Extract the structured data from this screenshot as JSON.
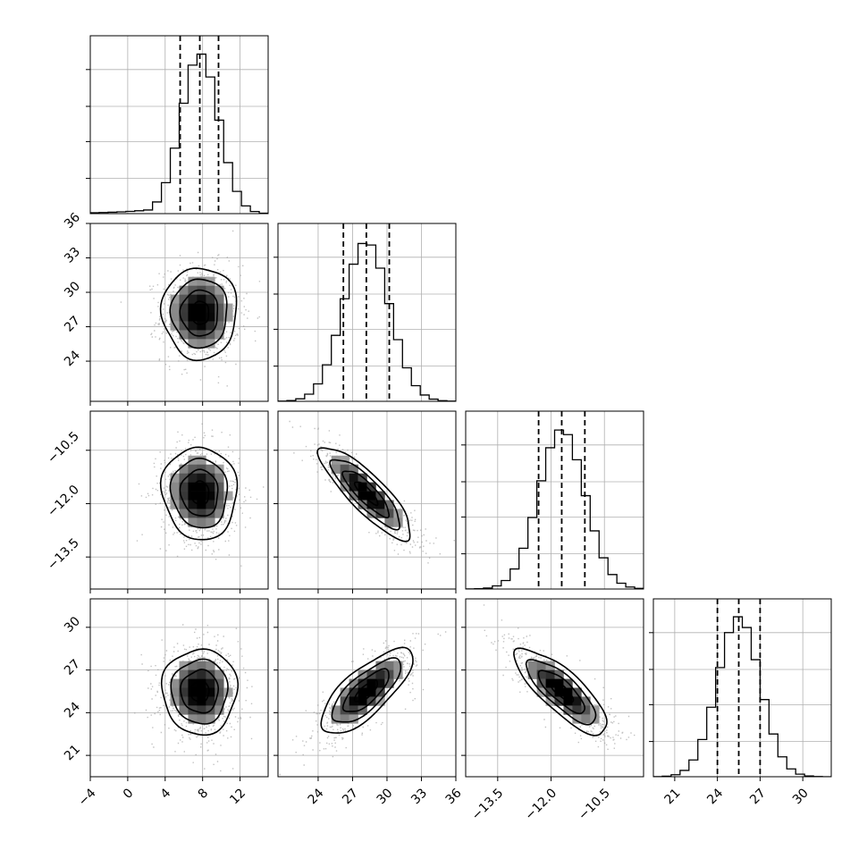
{
  "chart_data": {
    "type": "corner",
    "title": "",
    "grid": true,
    "parameters": [
      {
        "range": [
          -4,
          15
        ],
        "ticks": [
          "−4",
          "0",
          "4",
          "8",
          "12"
        ],
        "tick_values": [
          -4,
          0,
          4,
          8,
          12
        ],
        "median": 7.7,
        "quantiles": [
          5.6,
          7.7,
          9.7
        ],
        "spread": 2.0,
        "hist_mode": 7.8
      },
      {
        "range": [
          20.5,
          36
        ],
        "ticks": [
          "24",
          "27",
          "30",
          "33",
          "36"
        ],
        "tick_values": [
          24,
          27,
          30,
          33,
          36
        ],
        "median": 28.2,
        "quantiles": [
          26.2,
          28.2,
          30.2
        ],
        "spread": 2.0,
        "hist_mode": 28.2
      },
      {
        "range": [
          -14.4,
          -9.4
        ],
        "ticks": [
          "−13.5",
          "−12.0",
          "−10.5"
        ],
        "tick_values": [
          -13.5,
          -12.0,
          -10.5
        ],
        "median": -11.7,
        "quantiles": [
          -12.35,
          -11.7,
          -11.05
        ],
        "spread": 0.65,
        "hist_mode": -11.7
      },
      {
        "range": [
          19.5,
          32
        ],
        "ticks": [
          "21",
          "24",
          "27",
          "30"
        ],
        "tick_values": [
          21,
          24,
          27,
          30
        ],
        "median": 25.5,
        "quantiles": [
          24.0,
          25.5,
          27.0
        ],
        "spread": 1.5,
        "hist_mode": 25.5
      }
    ],
    "correlations": {
      "1-0": 0.0,
      "2-0": -0.05,
      "2-1": -0.85,
      "3-0": 0.0,
      "3-1": 0.75,
      "3-2": -0.8
    }
  }
}
